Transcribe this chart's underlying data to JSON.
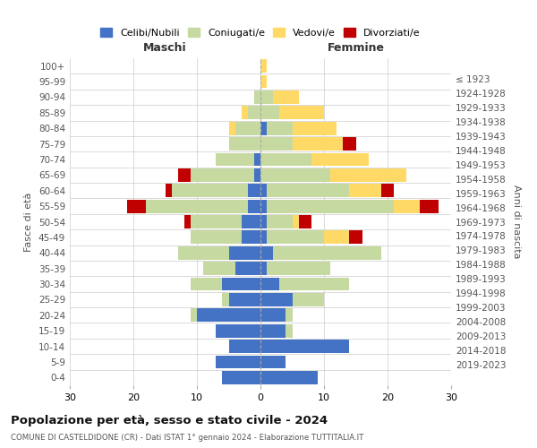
{
  "age_groups": [
    "0-4",
    "5-9",
    "10-14",
    "15-19",
    "20-24",
    "25-29",
    "30-34",
    "35-39",
    "40-44",
    "45-49",
    "50-54",
    "55-59",
    "60-64",
    "65-69",
    "70-74",
    "75-79",
    "80-84",
    "85-89",
    "90-94",
    "95-99",
    "100+"
  ],
  "birth_years": [
    "2019-2023",
    "2014-2018",
    "2009-2013",
    "2004-2008",
    "1999-2003",
    "1994-1998",
    "1989-1993",
    "1984-1988",
    "1979-1983",
    "1974-1978",
    "1969-1973",
    "1964-1968",
    "1959-1963",
    "1954-1958",
    "1949-1953",
    "1944-1948",
    "1939-1943",
    "1934-1938",
    "1929-1933",
    "1924-1928",
    "≤ 1923"
  ],
  "maschi": {
    "celibi": [
      6,
      7,
      5,
      7,
      10,
      5,
      6,
      4,
      5,
      3,
      3,
      2,
      2,
      1,
      1,
      0,
      0,
      0,
      0,
      0,
      0
    ],
    "coniugati": [
      0,
      0,
      0,
      0,
      1,
      1,
      5,
      5,
      8,
      8,
      8,
      16,
      12,
      10,
      6,
      5,
      4,
      2,
      1,
      0,
      0
    ],
    "vedovi": [
      0,
      0,
      0,
      0,
      0,
      0,
      0,
      0,
      0,
      0,
      0,
      0,
      0,
      0,
      0,
      0,
      1,
      1,
      0,
      0,
      0
    ],
    "divorziati": [
      0,
      0,
      0,
      0,
      0,
      0,
      0,
      0,
      0,
      0,
      1,
      3,
      1,
      2,
      0,
      0,
      0,
      0,
      0,
      0,
      0
    ]
  },
  "femmine": {
    "nubili": [
      9,
      4,
      14,
      4,
      4,
      5,
      3,
      1,
      2,
      1,
      1,
      1,
      1,
      0,
      0,
      0,
      1,
      0,
      0,
      0,
      0
    ],
    "coniugate": [
      0,
      0,
      0,
      1,
      1,
      5,
      11,
      10,
      17,
      9,
      4,
      20,
      13,
      11,
      8,
      5,
      4,
      3,
      2,
      0,
      0
    ],
    "vedove": [
      0,
      0,
      0,
      0,
      0,
      0,
      0,
      0,
      0,
      4,
      1,
      4,
      5,
      12,
      9,
      8,
      7,
      7,
      4,
      1,
      1
    ],
    "divorziate": [
      0,
      0,
      0,
      0,
      0,
      0,
      0,
      0,
      0,
      2,
      2,
      3,
      2,
      0,
      0,
      2,
      0,
      0,
      0,
      0,
      0
    ]
  },
  "colors": {
    "celibi_nubili": "#4472C4",
    "coniugati": "#C5D9A0",
    "vedovi": "#FFD966",
    "divorziati": "#C00000"
  },
  "legend_labels": [
    "Celibi/Nubili",
    "Coniugati/e",
    "Vedovi/e",
    "Divorziati/e"
  ],
  "title": "Popolazione per età, sesso e stato civile - 2024",
  "subtitle": "COMUNE DI CASTELDIDONE (CR) - Dati ISTAT 1° gennaio 2024 - Elaborazione TUTTITALIA.IT",
  "xlabel_maschi": "Maschi",
  "xlabel_femmine": "Femmine",
  "ylabel": "Fasce di età",
  "ylabel_right": "Anni di nascita",
  "xlim": 30,
  "bg_color": "#ffffff",
  "grid_color": "#cccccc"
}
